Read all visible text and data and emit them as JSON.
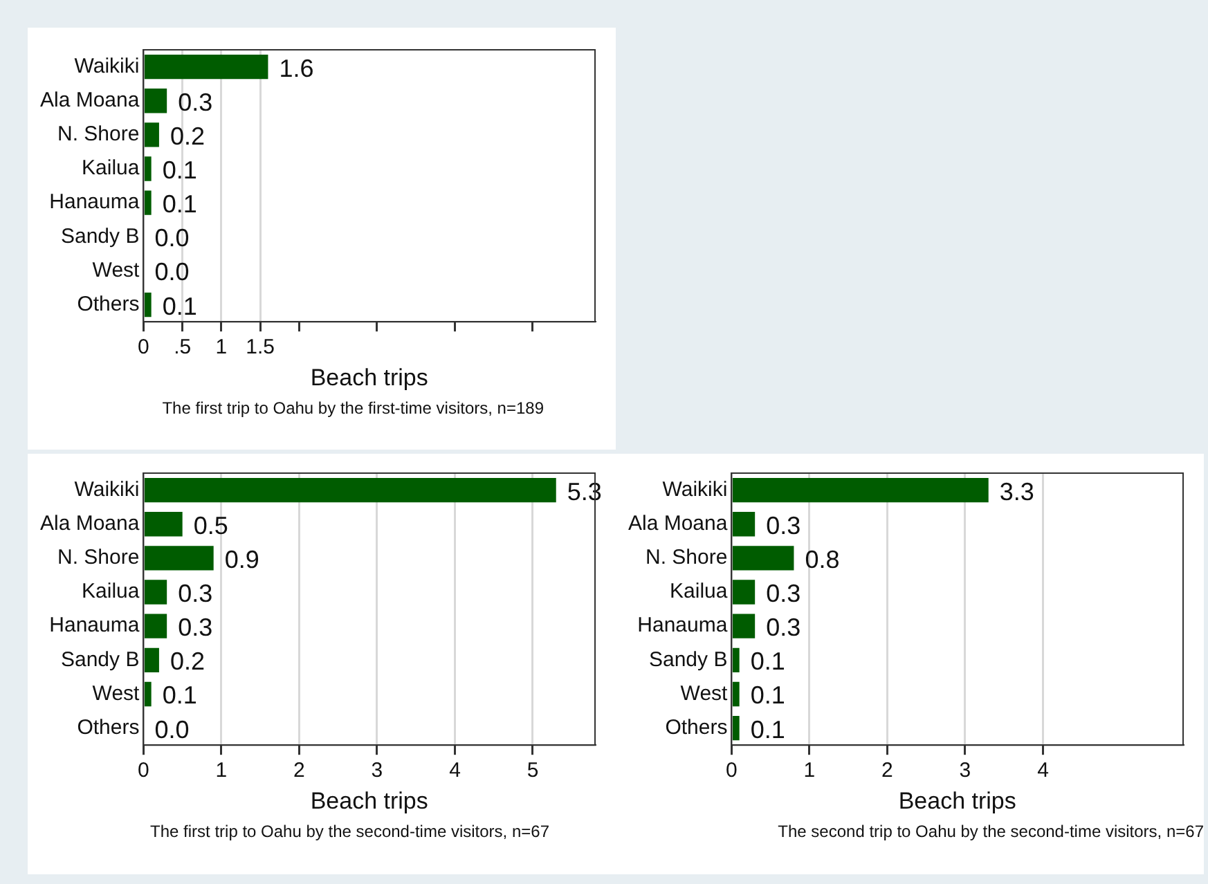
{
  "chart_data": [
    {
      "type": "bar",
      "orientation": "horizontal",
      "categories": [
        "Waikiki",
        "Ala Moana",
        "N. Shore",
        "Kailua",
        "Hanauma",
        "Sandy B",
        "West",
        "Others"
      ],
      "values": [
        1.6,
        0.3,
        0.2,
        0.1,
        0.1,
        0.0,
        0.0,
        0.1
      ],
      "value_labels": [
        "1.6",
        "0.3",
        "0.2",
        "0.1",
        "0.1",
        "0.0",
        "0.0",
        "0.1"
      ],
      "color": "#005c00",
      "xlim": [
        0,
        5.8
      ],
      "xticks": [
        0,
        {
          "value": 0.5,
          "label": ".5"
        },
        1,
        1.5,
        {
          "value": 2,
          "label": null
        },
        {
          "value": 3,
          "label": null
        },
        {
          "value": 4,
          "label": null
        },
        {
          "value": 5,
          "label": null
        }
      ],
      "xlabel": "Beach trips",
      "annotations": [
        "The first trip to Oahu by the first-time visitors, n=189"
      ],
      "grid": "x"
    },
    {
      "type": "bar",
      "orientation": "horizontal",
      "categories": [
        "Waikiki",
        "Ala Moana",
        "N. Shore",
        "Kailua",
        "Hanauma",
        "Sandy B",
        "West",
        "Others"
      ],
      "values": [
        5.3,
        0.5,
        0.9,
        0.3,
        0.3,
        0.2,
        0.1,
        0.0
      ],
      "value_labels": [
        "5.3",
        "0.5",
        "0.9",
        "0.3",
        "0.3",
        "0.2",
        "0.1",
        "0.0"
      ],
      "color": "#005c00",
      "xlim": [
        0,
        5.8
      ],
      "xticks": [
        0,
        1,
        2,
        3,
        4,
        5
      ],
      "xlabel": "Beach trips",
      "annotations": [
        "The first trip to Oahu by the second-time visitors, n=67"
      ],
      "grid": "x"
    },
    {
      "type": "bar",
      "orientation": "horizontal",
      "categories": [
        "Waikiki",
        "Ala Moana",
        "N. Shore",
        "Kailua",
        "Hanauma",
        "Sandy B",
        "West",
        "Others"
      ],
      "values": [
        3.3,
        0.3,
        0.8,
        0.3,
        0.3,
        0.1,
        0.1,
        0.1
      ],
      "value_labels": [
        "3.3",
        "0.3",
        "0.8",
        "0.3",
        "0.3",
        "0.1",
        "0.1",
        "0.1"
      ],
      "color": "#005c00",
      "xlim": [
        0,
        5.8
      ],
      "xticks": [
        0,
        1,
        2,
        3,
        4
      ],
      "xlabel": "Beach trips",
      "annotations": [
        "The second trip to Oahu by the second-time visitors, n=67"
      ],
      "grid": "x"
    }
  ]
}
